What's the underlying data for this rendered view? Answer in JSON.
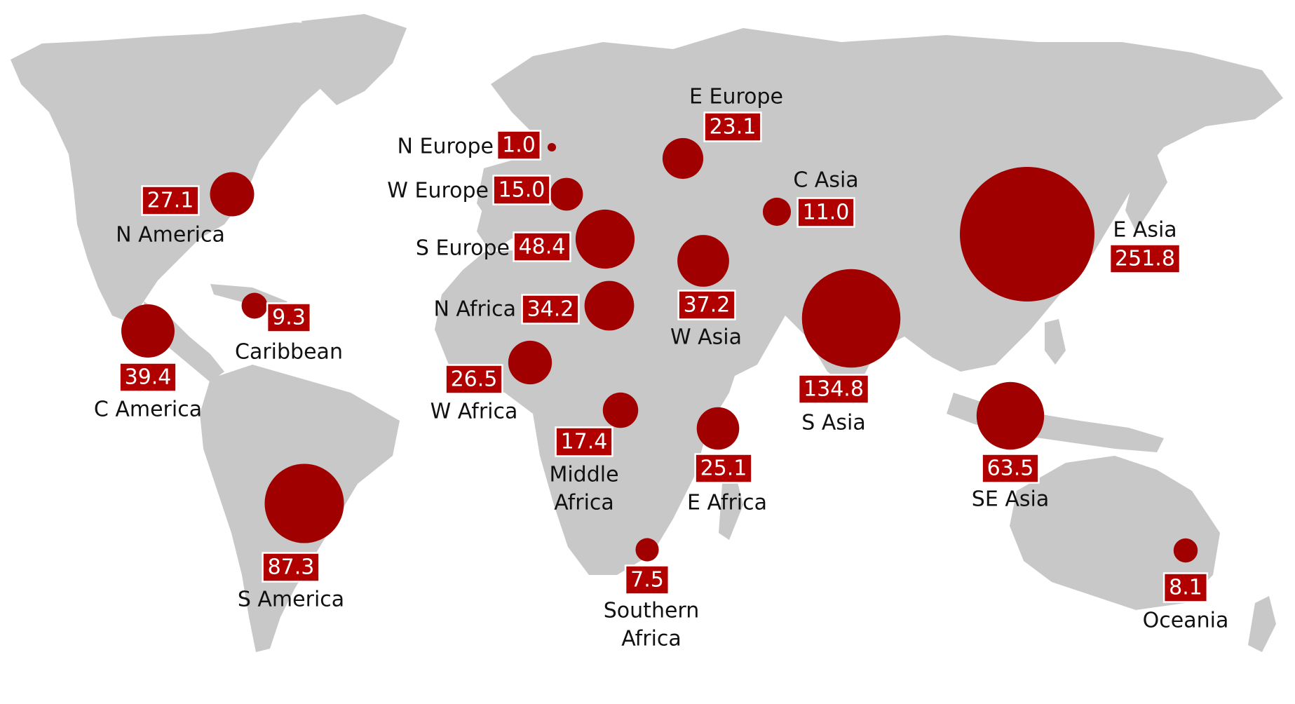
{
  "colors": {
    "land": "#c8c8c8",
    "bubble": "#a10000",
    "label_box": "#b00000",
    "label_text": "#ffffff",
    "region_text": "#111111"
  },
  "regions": [
    {
      "id": "n-america",
      "name_lines": [
        "N America"
      ],
      "value": "27.1"
    },
    {
      "id": "c-america",
      "name_lines": [
        "C America"
      ],
      "value": "39.4"
    },
    {
      "id": "caribbean",
      "name_lines": [
        "Caribbean"
      ],
      "value": "9.3"
    },
    {
      "id": "s-america",
      "name_lines": [
        "S America"
      ],
      "value": "87.3"
    },
    {
      "id": "n-europe",
      "name_lines": [
        "N Europe"
      ],
      "value": "1.0"
    },
    {
      "id": "w-europe",
      "name_lines": [
        "W Europe"
      ],
      "value": "15.0"
    },
    {
      "id": "s-europe",
      "name_lines": [
        "S Europe"
      ],
      "value": "48.4"
    },
    {
      "id": "e-europe",
      "name_lines": [
        "E Europe"
      ],
      "value": "23.1"
    },
    {
      "id": "n-africa",
      "name_lines": [
        "N Africa"
      ],
      "value": "34.2"
    },
    {
      "id": "w-africa",
      "name_lines": [
        "W Africa"
      ],
      "value": "26.5"
    },
    {
      "id": "middle-africa",
      "name_lines": [
        "Middle",
        "Africa"
      ],
      "value": "17.4"
    },
    {
      "id": "e-africa",
      "name_lines": [
        "E Africa"
      ],
      "value": "25.1"
    },
    {
      "id": "southern-africa",
      "name_lines": [
        "Southern",
        "Africa"
      ],
      "value": "7.5"
    },
    {
      "id": "w-asia",
      "name_lines": [
        "W Asia"
      ],
      "value": "37.2"
    },
    {
      "id": "c-asia",
      "name_lines": [
        "C Asia"
      ],
      "value": "11.0"
    },
    {
      "id": "s-asia",
      "name_lines": [
        "S Asia"
      ],
      "value": "134.8"
    },
    {
      "id": "e-asia",
      "name_lines": [
        "E Asia"
      ],
      "value": "251.8"
    },
    {
      "id": "se-asia",
      "name_lines": [
        "SE Asia"
      ],
      "value": "63.5"
    },
    {
      "id": "oceania",
      "name_lines": [
        "Oceania"
      ],
      "value": "8.1"
    }
  ]
}
